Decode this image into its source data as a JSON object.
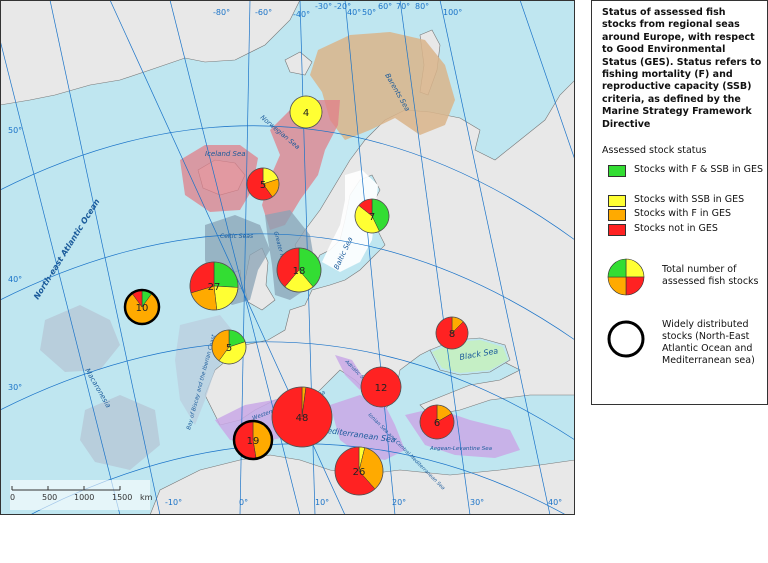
{
  "legend": {
    "title": "Status of assessed fish stocks from regional seas around Europe, with respect to Good Environmental Status (GES). Status refers to fishing mortality (F) and reproductive capacity (SSB) criteria, as defined by the Marine Strategy Framework Directive",
    "section_label": "Assessed stock status",
    "items": [
      {
        "label": "Stocks with F & SSB in GES",
        "color": "#33dd33"
      },
      {
        "label": "Stocks with SSB in GES",
        "color": "#ffff33"
      },
      {
        "label": "Stocks with F in GES",
        "color": "#ffaa00"
      },
      {
        "label": "Stocks not in GES",
        "color": "#ff2222"
      }
    ],
    "total_label": "Total number of assessed fish stocks",
    "wide_label": "Widely distributed stocks (North-East Atlantic Ocean and Mediterranean sea)"
  },
  "map": {
    "colors": {
      "ocean": "#bfe6f0",
      "land": "#e8e8e8",
      "border": "#555555",
      "graticule": "#1a73c8",
      "barents": "#d9b48a",
      "norwegian": "#e07f8a",
      "north_sea": "#8aa3b5",
      "baltic": "#ffffff",
      "black_sea": "#c5f0c0",
      "mediterranean": "#c9a8e6",
      "macaronesia": "#b5c5d5"
    },
    "sea_labels": [
      "Barents Sea",
      "Norwegian Sea",
      "Iceland Sea",
      "North-east Atlantic Ocean",
      "Celtic Seas",
      "Greater North Sea",
      "Baltic Sea",
      "Bay of Biscay and the Iberian Coast",
      "Macaronesia",
      "Western Mediterranean Sea",
      "Adriatic Sea",
      "Ionian Sea and Central Mediterranean Sea",
      "Mediterranean Sea",
      "Aegean-Levantine Sea",
      "Black Sea"
    ],
    "lat_labels": [
      "30°",
      "40°",
      "50°"
    ],
    "lon_labels_top": [
      "-80°",
      "-60°",
      "-30°",
      "-40°",
      "-20°",
      "40°",
      "50°",
      "60°",
      "70°",
      "80°",
      "100°"
    ],
    "lon_labels_bottom": [
      "-10°",
      "0°",
      "10°",
      "20°",
      "30°",
      "40°"
    ],
    "scale": {
      "ticks": [
        "0",
        "500",
        "1000",
        "1500"
      ],
      "unit": "km"
    }
  },
  "chart_data": {
    "type": "pie",
    "series_order": [
      "Stocks with F & SSB in GES",
      "Stocks with SSB in GES",
      "Stocks with F in GES",
      "Stocks not in GES"
    ],
    "regions": [
      {
        "total": "4",
        "values": [
          0,
          4,
          0,
          0
        ],
        "wide": false
      },
      {
        "total": "5",
        "values": [
          0,
          1,
          1,
          3
        ],
        "wide": false
      },
      {
        "total": "7",
        "values": [
          3,
          3,
          0,
          1
        ],
        "wide": false
      },
      {
        "total": "18",
        "values": [
          7,
          4,
          0,
          7
        ],
        "wide": false
      },
      {
        "total": "27",
        "values": [
          7,
          6,
          6,
          8
        ],
        "wide": false
      },
      {
        "total": "10",
        "values": [
          1,
          0,
          8,
          1
        ],
        "wide": true
      },
      {
        "total": "5",
        "values": [
          1,
          2,
          2,
          0
        ],
        "wide": false
      },
      {
        "total": "8",
        "values": [
          0,
          0,
          1,
          7
        ],
        "wide": false
      },
      {
        "total": "12",
        "values": [
          0,
          0,
          0,
          12
        ],
        "wide": false
      },
      {
        "total": "48",
        "values": [
          0,
          0,
          1,
          47
        ],
        "wide": false
      },
      {
        "total": "6",
        "values": [
          0,
          0,
          1,
          5
        ],
        "wide": false
      },
      {
        "total": "19",
        "values": [
          0,
          0,
          9,
          10
        ],
        "wide": true
      },
      {
        "total": "26",
        "values": [
          0,
          1,
          9,
          16
        ],
        "wide": false
      }
    ]
  }
}
